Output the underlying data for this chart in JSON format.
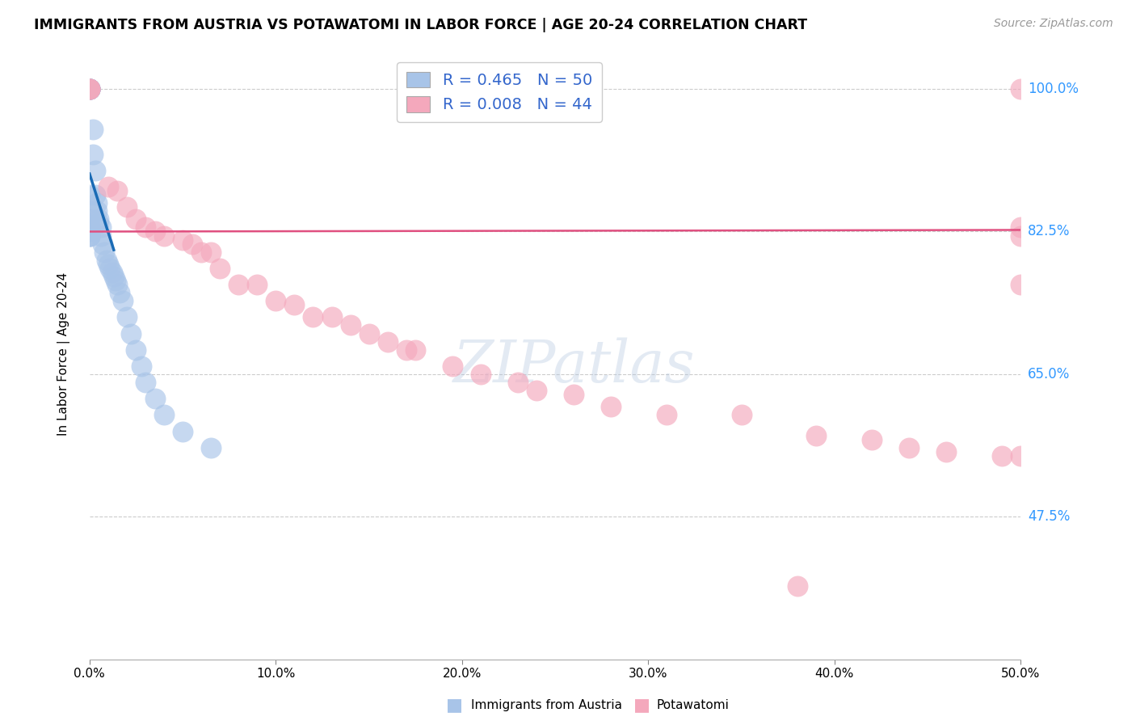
{
  "title": "IMMIGRANTS FROM AUSTRIA VS POTAWATOMI IN LABOR FORCE | AGE 20-24 CORRELATION CHART",
  "source": "Source: ZipAtlas.com",
  "ylabel": "In Labor Force | Age 20-24",
  "xlim": [
    0.0,
    0.5
  ],
  "ylim": [
    0.3,
    1.05
  ],
  "yticks": [
    0.475,
    0.65,
    0.825,
    1.0
  ],
  "ytick_labels": [
    "47.5%",
    "65.0%",
    "82.5%",
    "100.0%"
  ],
  "xticks": [
    0.0,
    0.1,
    0.2,
    0.3,
    0.4,
    0.5
  ],
  "xtick_labels": [
    "0.0%",
    "10.0%",
    "20.0%",
    "30.0%",
    "40.0%",
    "50.0%"
  ],
  "austria_R": 0.465,
  "austria_N": 50,
  "potawatomi_R": 0.008,
  "potawatomi_N": 44,
  "austria_color": "#a8c4e8",
  "potawatomi_color": "#f4a8bc",
  "austria_line_color": "#1a6bb5",
  "potawatomi_line_color": "#e05080",
  "background_color": "#ffffff",
  "austria_x": [
    0.0,
    0.0,
    0.0,
    0.0,
    0.0,
    0.0,
    0.0,
    0.0,
    0.0,
    0.0,
    0.0,
    0.0,
    0.0,
    0.0,
    0.0,
    0.0,
    0.0,
    0.0,
    0.0,
    0.0,
    0.002,
    0.002,
    0.003,
    0.003,
    0.004,
    0.004,
    0.005,
    0.005,
    0.006,
    0.006,
    0.007,
    0.008,
    0.009,
    0.01,
    0.011,
    0.012,
    0.013,
    0.014,
    0.015,
    0.016,
    0.018,
    0.02,
    0.022,
    0.025,
    0.028,
    0.03,
    0.035,
    0.04,
    0.05,
    0.065
  ],
  "austria_y": [
    1.0,
    1.0,
    1.0,
    1.0,
    1.0,
    1.0,
    1.0,
    1.0,
    1.0,
    1.0,
    0.87,
    0.85,
    0.84,
    0.83,
    0.83,
    0.825,
    0.825,
    0.82,
    0.82,
    0.82,
    0.95,
    0.92,
    0.9,
    0.87,
    0.86,
    0.85,
    0.84,
    0.835,
    0.83,
    0.82,
    0.81,
    0.8,
    0.79,
    0.785,
    0.78,
    0.775,
    0.77,
    0.765,
    0.76,
    0.75,
    0.74,
    0.72,
    0.7,
    0.68,
    0.66,
    0.64,
    0.62,
    0.6,
    0.58,
    0.56
  ],
  "potawatomi_x": [
    0.0,
    0.0,
    0.0,
    0.01,
    0.015,
    0.02,
    0.025,
    0.03,
    0.035,
    0.04,
    0.05,
    0.055,
    0.06,
    0.065,
    0.07,
    0.08,
    0.09,
    0.1,
    0.11,
    0.12,
    0.13,
    0.14,
    0.15,
    0.16,
    0.17,
    0.175,
    0.195,
    0.21,
    0.23,
    0.24,
    0.26,
    0.28,
    0.31,
    0.35,
    0.39,
    0.42,
    0.44,
    0.46,
    0.49,
    0.5,
    0.5,
    0.5,
    0.5,
    0.5
  ],
  "potawatomi_y": [
    1.0,
    1.0,
    1.0,
    0.88,
    0.875,
    0.855,
    0.84,
    0.83,
    0.825,
    0.82,
    0.815,
    0.81,
    0.8,
    0.8,
    0.78,
    0.76,
    0.76,
    0.74,
    0.735,
    0.72,
    0.72,
    0.71,
    0.7,
    0.69,
    0.68,
    0.68,
    0.66,
    0.65,
    0.64,
    0.63,
    0.625,
    0.61,
    0.6,
    0.6,
    0.575,
    0.57,
    0.56,
    0.555,
    0.55,
    0.55,
    0.76,
    0.82,
    0.83,
    1.0
  ],
  "potawatomi_outlier_x": [
    0.38
  ],
  "potawatomi_outlier_y": [
    0.39
  ],
  "legend_R1_label": "R = 0.465",
  "legend_N1_label": "N = 50",
  "legend_R2_label": "R = 0.008",
  "legend_N2_label": "N = 44",
  "bottom_legend_austria": "Immigrants from Austria",
  "bottom_legend_potawatomi": "Potawatomi"
}
